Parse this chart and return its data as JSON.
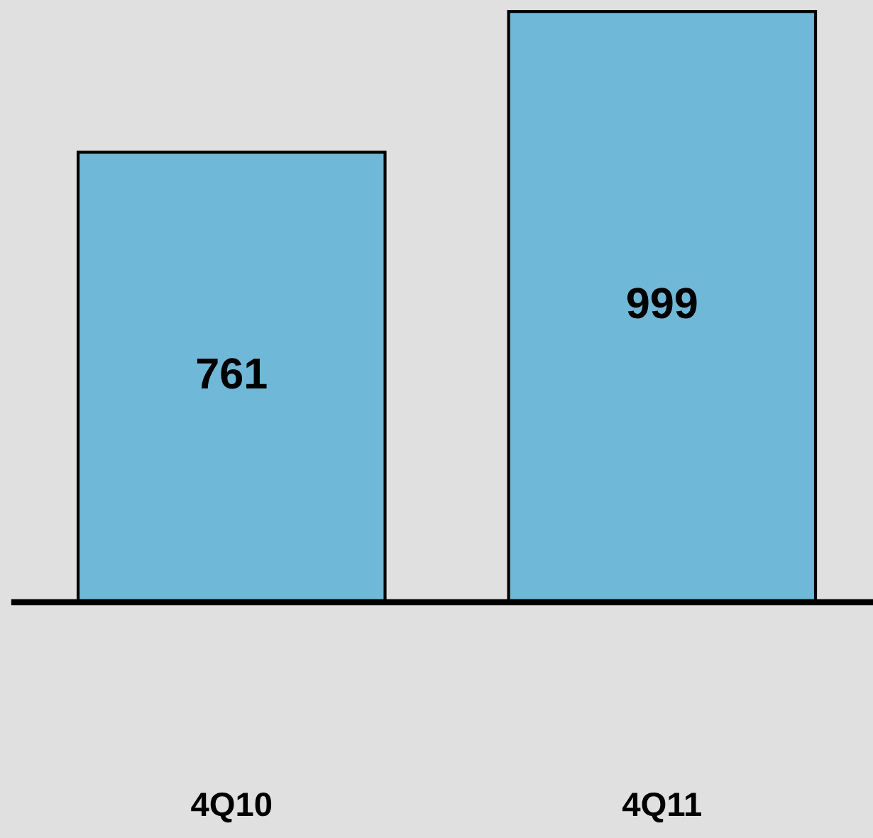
{
  "chart_data": {
    "type": "bar",
    "categories": [
      "4Q10",
      "4Q11"
    ],
    "values": [
      761,
      999
    ],
    "color": "#70b8d8",
    "data_labels": true,
    "grid": false,
    "legend": false
  }
}
